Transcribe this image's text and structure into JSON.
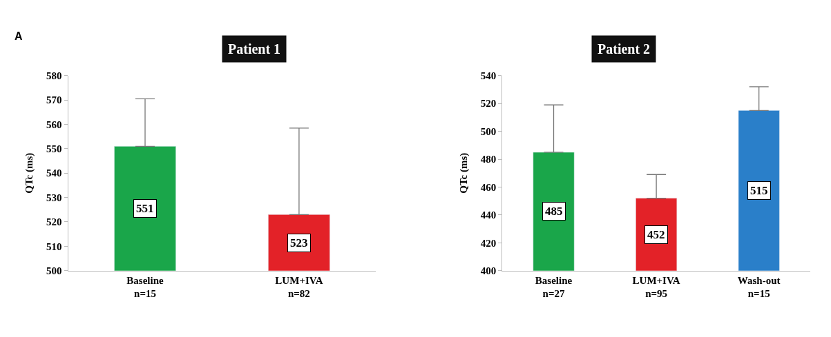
{
  "chart_data": [
    {
      "type": "bar",
      "title": "Patient 1",
      "ylabel": "QTc (ms)",
      "annotations": [
        "A"
      ],
      "categories": [
        "Baseline\nn=15",
        "LUM+IVA\nn=82"
      ],
      "values": [
        551,
        523
      ],
      "colors": [
        "#1aa64a",
        "#e32228"
      ],
      "errors": [
        [
          551,
          570.5
        ],
        [
          523,
          558.5
        ]
      ],
      "data_labels": true,
      "ylim": [
        500,
        580
      ],
      "yticks": [
        500,
        510,
        520,
        530,
        540,
        550,
        560,
        570,
        580
      ]
    },
    {
      "type": "bar",
      "title": "Patient 2",
      "ylabel": "QTc (ms)",
      "categories": [
        "Baseline\nn=27",
        "LUM+IVA\nn=95",
        "Wash-out\nn=15"
      ],
      "values": [
        485,
        452,
        515
      ],
      "colors": [
        "#1aa64a",
        "#e32228",
        "#2a7fc9"
      ],
      "errors": [
        [
          485,
          519
        ],
        [
          452,
          469
        ],
        [
          515,
          532
        ]
      ],
      "data_labels": true,
      "ylim": [
        400,
        540
      ],
      "yticks": [
        400,
        420,
        440,
        460,
        480,
        500,
        520,
        540
      ]
    }
  ]
}
